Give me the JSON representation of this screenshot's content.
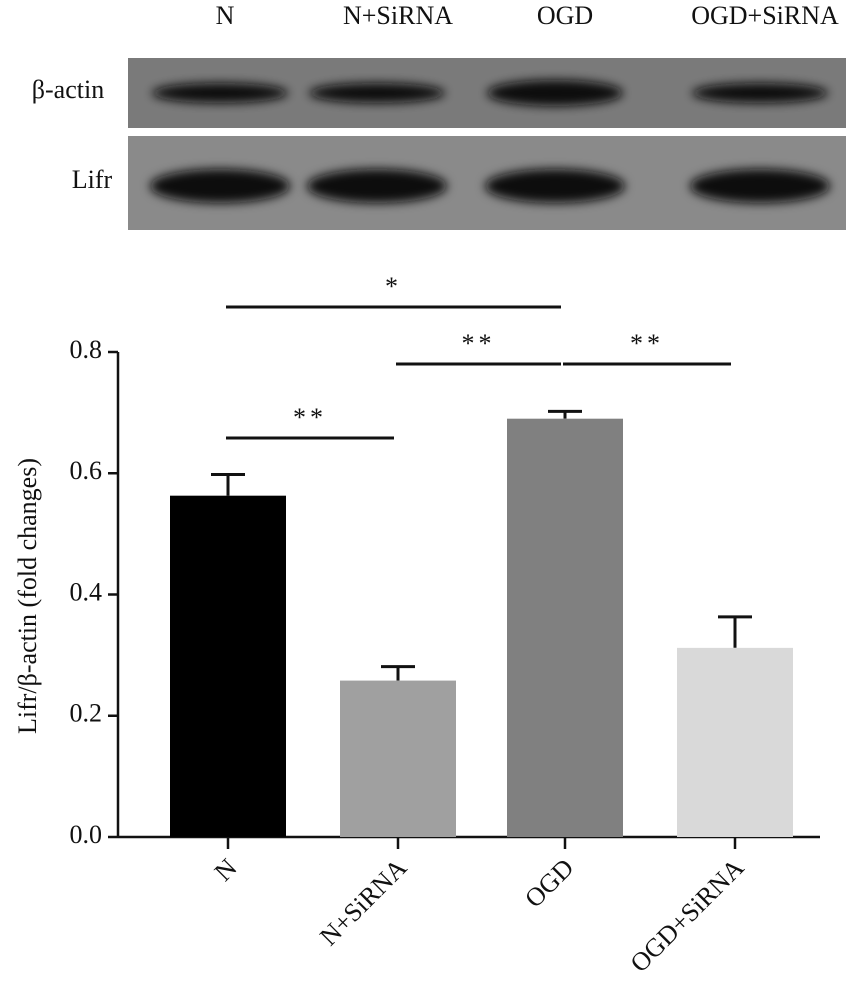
{
  "blot": {
    "lanes": [
      "N",
      "N+SiRNA",
      "OGD",
      "OGD+SiRNA"
    ],
    "rows": [
      "β-actin",
      "Lifr"
    ]
  },
  "chart_data": {
    "type": "bar",
    "ylabel": "Lifr/β-actin (fold changes)",
    "categories": [
      "N",
      "N+SiRNA",
      "OGD",
      "OGD+SiRNA"
    ],
    "values": [
      0.563,
      0.258,
      0.69,
      0.312
    ],
    "errors": [
      0.035,
      0.023,
      0.012,
      0.051
    ],
    "colors": [
      "#000000",
      "#a0a0a0",
      "#808080",
      "#d9d9d9"
    ],
    "ylim": [
      0,
      0.8
    ],
    "yticks": [
      {
        "value": 0,
        "label": "0.0"
      },
      0.2,
      0.4,
      0.6,
      0.8
    ],
    "annotations": [
      {
        "text": "**",
        "from": 0,
        "to": 1
      },
      {
        "text": "**",
        "from": 1,
        "to": 2
      },
      {
        "text": "**",
        "from": 2,
        "to": 3
      },
      {
        "text": "*",
        "from": 0,
        "to": 2
      }
    ]
  }
}
